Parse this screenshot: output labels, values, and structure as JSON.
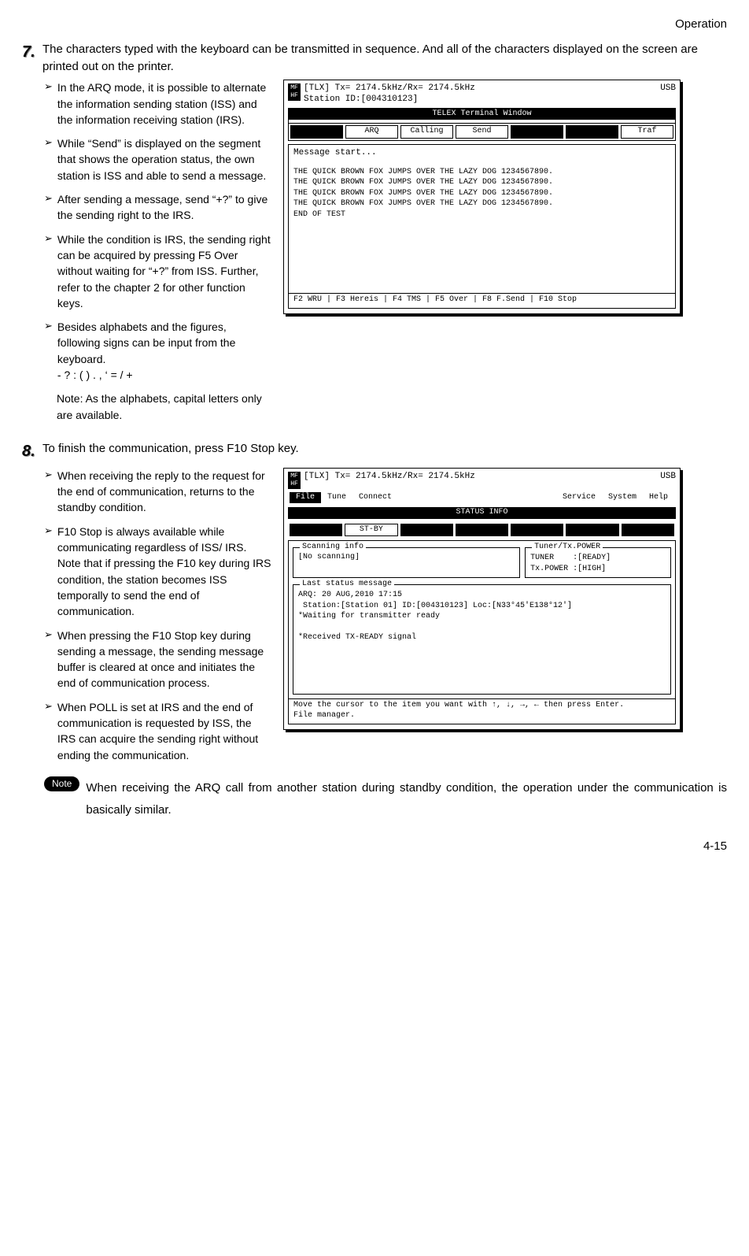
{
  "page": {
    "header": "Operation",
    "footer": "4-15"
  },
  "step7": {
    "num": "7.",
    "text": "The characters typed with the keyboard can be transmitted in sequence. And all of the characters displayed on the screen are printed out on the printer.",
    "bullets": [
      "In the ARQ mode, it is possible to alternate the information sending station (ISS) and the information receiving station (IRS).",
      "While “Send” is displayed on the segment that shows the operation status, the own station is ISS and able to send a message.",
      "After sending a message, send “+?” to give the sending right to the IRS.",
      "While the condition is IRS, the sending right can be acquired by pressing F5 Over without waiting for “+?” from ISS. Further, refer to the chapter 2 for other function keys.",
      "Besides alphabets and the figures, following signs can be input from the keyboard.\n- ? : ( ) . , ‘ = / +"
    ],
    "subnote": "Note: As the alphabets, capital letters only are available."
  },
  "term1": {
    "line1": "[TLX] Tx= 2174.5kHz/Rx= 2174.5kHz",
    "usb": "USB",
    "line2": "Station ID:[004310123]",
    "title": "TELEX Terminal Window",
    "segs": [
      "",
      "ARQ",
      "Calling",
      "Send",
      "",
      "",
      "Traf"
    ],
    "seg_inv": [
      true,
      false,
      false,
      false,
      true,
      true,
      false
    ],
    "msg_label": "Message start...",
    "body": "THE QUICK BROWN FOX JUMPS OVER THE LAZY DOG 1234567890.\nTHE QUICK BROWN FOX JUMPS OVER THE LAZY DOG 1234567890.\nTHE QUICK BROWN FOX JUMPS OVER THE LAZY DOG 1234567890.\nTHE QUICK BROWN FOX JUMPS OVER THE LAZY DOG 1234567890.\nEND OF TEST",
    "footer": "F2 WRU | F3 Hereis | F4 TMS | F5 Over | F8 F.Send | F10 Stop"
  },
  "step8": {
    "num": "8.",
    "text": "To finish the communication, press F10 Stop key.",
    "bullets": [
      "When receiving the reply to the request for the end of communication, returns to the standby condition.",
      "F10 Stop is always available while communicating regardless of ISS/ IRS. Note that if pressing the F10 key during IRS condition, the station becomes ISS temporally to send the end of communication.",
      "When pressing the F10 Stop key during sending a message, the sending message buffer is cleared at once and initiates the end of communication process.",
      "When POLL is set at IRS and the end of communication is requested by ISS, the IRS can acquire the sending right without ending the communication."
    ]
  },
  "term2": {
    "line1": "[TLX] Tx= 2174.5kHz/Rx= 2174.5kHz",
    "usb": "USB",
    "menu": [
      "File",
      "Tune",
      "Connect",
      "Service",
      "System",
      "Help"
    ],
    "menu_inv": [
      true,
      false,
      false,
      false,
      false,
      false
    ],
    "status_title": "STATUS INFO",
    "segs": [
      "",
      "ST-BY",
      "",
      "",
      "",
      "",
      ""
    ],
    "seg_inv": [
      true,
      false,
      true,
      true,
      true,
      true,
      true
    ],
    "scanning_label": "Scanning info",
    "scanning_value": "[No scanning]",
    "tuner_label": "Tuner/Tx.POWER",
    "tuner_value": "TUNER    :[READY]\nTx.POWER :[HIGH]",
    "laststatus_label": "Last status message",
    "laststatus_value": "ARQ: 20 AUG,2010 17:15\n Station:[Station 01] ID:[004310123] Loc:[N33°45'E138°12']\n*Waiting for transmitter ready\n\n*Received TX-READY signal",
    "footer": "Move the cursor to the item you want with ↑, ↓, →, ← then press Enter.\nFile manager."
  },
  "note": {
    "label": "Note",
    "text": "When receiving the ARQ call from another station during standby condition, the operation under the communication is basically similar."
  }
}
